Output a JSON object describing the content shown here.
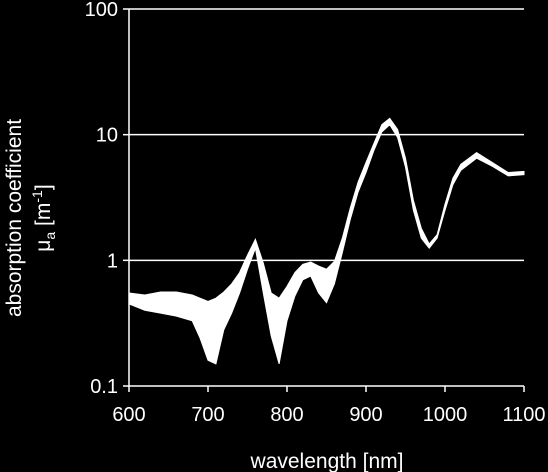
{
  "chart_data": {
    "type": "area",
    "title": "",
    "xlabel": "wavelength [nm]",
    "ylabel_line1": "absorption coefficient",
    "ylabel_symbol": "μ",
    "ylabel_subscript": "a",
    "ylabel_unit_open": " [m",
    "ylabel_unit_exp": "-1",
    "ylabel_unit_close": "]",
    "xlim": [
      600,
      1100
    ],
    "ylim": [
      0.1,
      100
    ],
    "y_scale": "log",
    "grid": "horizontal",
    "x_ticks": [
      600,
      700,
      800,
      900,
      1000,
      1100
    ],
    "x_tick_labels": [
      "600",
      "700",
      "800",
      "900",
      "1000",
      "1100"
    ],
    "y_ticks": [
      0.1,
      1,
      10,
      100
    ],
    "y_tick_labels": [
      "0.1",
      "1",
      "10",
      "100"
    ],
    "colors": {
      "background": "#000000",
      "foreground": "#ffffff"
    },
    "series": [
      {
        "x": [
          600,
          620,
          640,
          660,
          680,
          690,
          700,
          710,
          720,
          730,
          740,
          750,
          760,
          770,
          780,
          790,
          800,
          810,
          820,
          830,
          840,
          850,
          860,
          870,
          880,
          890,
          900,
          910,
          920,
          930,
          940,
          950,
          960,
          970,
          980,
          990,
          1000,
          1010,
          1020,
          1040,
          1060,
          1080,
          1100
        ],
        "upper": [
          0.55,
          0.53,
          0.56,
          0.56,
          0.53,
          0.5,
          0.47,
          0.5,
          0.56,
          0.65,
          0.8,
          1.1,
          1.47,
          0.95,
          0.55,
          0.5,
          0.62,
          0.8,
          0.93,
          0.97,
          0.9,
          0.85,
          0.98,
          1.5,
          2.6,
          4.2,
          6,
          8.5,
          12,
          13.5,
          11,
          6.5,
          3,
          1.8,
          1.35,
          1.6,
          2.8,
          4.5,
          5.8,
          7.2,
          6,
          5,
          5.1
        ],
        "lower": [
          0.45,
          0.4,
          0.38,
          0.36,
          0.33,
          0.24,
          0.16,
          0.15,
          0.28,
          0.38,
          0.55,
          0.85,
          1.25,
          0.55,
          0.25,
          0.15,
          0.33,
          0.52,
          0.7,
          0.75,
          0.55,
          0.46,
          0.65,
          1.15,
          2.1,
          3.5,
          5,
          7.5,
          10.5,
          12,
          9.5,
          5.5,
          2.5,
          1.5,
          1.25,
          1.5,
          2.5,
          4,
          5.2,
          6.5,
          5.6,
          4.7,
          4.8
        ]
      }
    ]
  }
}
